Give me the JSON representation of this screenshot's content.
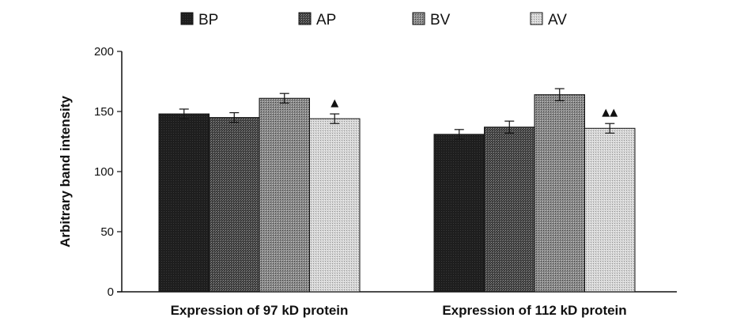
{
  "chart_data": {
    "type": "bar",
    "ylabel": "Arbitrary band intensity",
    "ylim": [
      0,
      200
    ],
    "yticks": [
      0,
      50,
      100,
      150,
      200
    ],
    "legend_position": "top",
    "categories": [
      "Expression of 97 kD protein",
      "Expression of 112 kD protein"
    ],
    "series": [
      {
        "name": "BP",
        "values": [
          148,
          131
        ],
        "errors": [
          4,
          4
        ],
        "color": "#1a1a1a",
        "annotations": [
          "",
          ""
        ]
      },
      {
        "name": "AP",
        "values": [
          145,
          137
        ],
        "errors": [
          4,
          5
        ],
        "color": "#4a4a4a",
        "annotations": [
          "",
          ""
        ]
      },
      {
        "name": "BV",
        "values": [
          161,
          164
        ],
        "errors": [
          4,
          5
        ],
        "color": "#8c8c8c",
        "annotations": [
          "",
          ""
        ]
      },
      {
        "name": "AV",
        "values": [
          144,
          136
        ],
        "errors": [
          4,
          4
        ],
        "color": "#d2d2d2",
        "annotations": [
          "▲",
          "▲▲"
        ]
      }
    ]
  }
}
